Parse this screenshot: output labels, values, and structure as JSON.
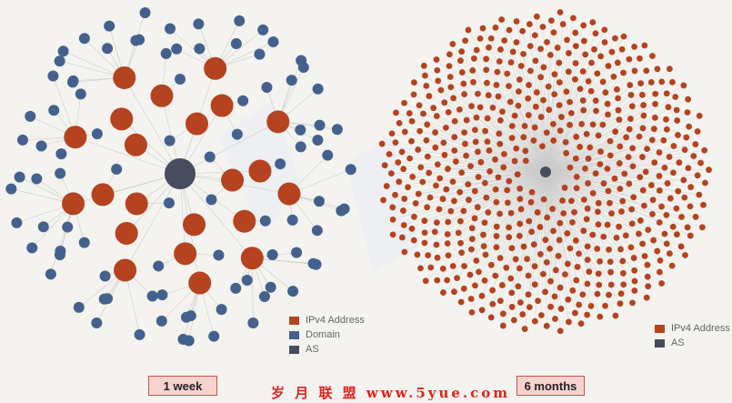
{
  "colors": {
    "ipv4": "#b5431f",
    "domain": "#44618e",
    "as": "#474c5e",
    "edge": "#cccccc",
    "caption_bg": "#f6d3cf",
    "caption_border": "#c9544a",
    "watermark": "#e1211c"
  },
  "panels": [
    {
      "caption": "1 week",
      "legend": [
        {
          "label": "IPv4 Address",
          "color": "#b5431f"
        },
        {
          "label": "Domain",
          "color": "#44618e"
        },
        {
          "label": "AS",
          "color": "#474c5e"
        }
      ]
    },
    {
      "caption": "6 months",
      "legend": [
        {
          "label": "IPv4 Address",
          "color": "#b5431f"
        },
        {
          "label": "AS",
          "color": "#474c5e"
        }
      ]
    }
  ],
  "watermark_text": "岁 月 联 盟   www.5yue.com"
}
